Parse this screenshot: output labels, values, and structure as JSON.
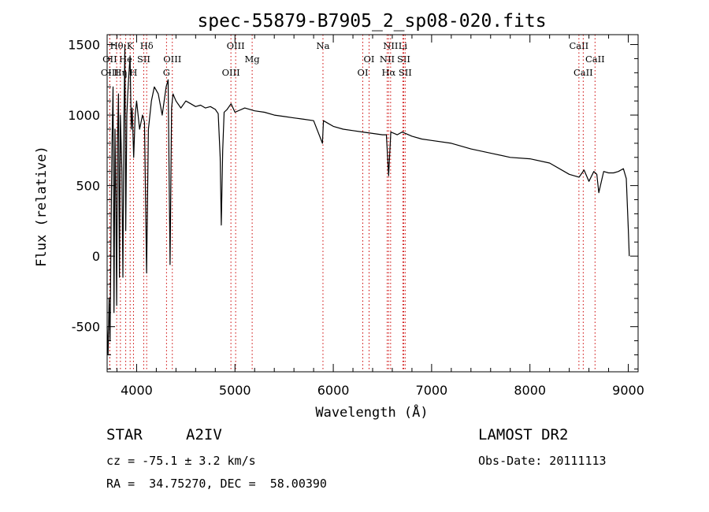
{
  "chart_data": {
    "type": "line",
    "title": "spec-55879-B7905_2_sp08-020.fits",
    "xlabel": "Wavelength (Å)",
    "ylabel": "Flux (relative)",
    "xlim": [
      3700,
      9100
    ],
    "ylim": [
      -820,
      1570
    ],
    "x_ticks": [
      4000,
      5000,
      6000,
      7000,
      8000,
      9000
    ],
    "y_ticks": [
      -500,
      0,
      500,
      1000,
      1500
    ],
    "grid": false,
    "line_color": "#000000",
    "marker_color": "#cc0000",
    "series": [
      {
        "x": [
          3700,
          3710,
          3720,
          3730,
          3740,
          3750,
          3760,
          3770,
          3780,
          3790,
          3797,
          3805,
          3815,
          3825,
          3835,
          3850,
          3860,
          3870,
          3880,
          3889,
          3900,
          3910,
          3920,
          3933,
          3945,
          3955,
          3970,
          3985,
          4000,
          4030,
          4060,
          4080,
          4101,
          4120,
          4150,
          4180,
          4220,
          4260,
          4300,
          4320,
          4340,
          4355,
          4370,
          4400,
          4450,
          4500,
          4550,
          4600,
          4650,
          4700,
          4750,
          4800,
          4830,
          4850,
          4861,
          4875,
          4890,
          4920,
          4960,
          5000,
          5100,
          5200,
          5300,
          5400,
          5500,
          5600,
          5700,
          5800,
          5890,
          5900,
          5950,
          6000,
          6100,
          6200,
          6300,
          6400,
          6500,
          6540,
          6563,
          6585,
          6650,
          6700,
          6800,
          6900,
          7000,
          7200,
          7400,
          7600,
          7800,
          8000,
          8200,
          8400,
          8500,
          8550,
          8600,
          8650,
          8680,
          8700,
          8750,
          8800,
          8850,
          8900,
          8950,
          8980,
          9000,
          9010
        ],
        "y": [
          -500,
          -700,
          -300,
          -600,
          200,
          800,
          1200,
          -400,
          900,
          300,
          -350,
          800,
          1150,
          -150,
          1000,
          600,
          -150,
          900,
          1500,
          180,
          1000,
          1150,
          1280,
          1420,
          900,
          1050,
          700,
          1000,
          1100,
          900,
          1000,
          950,
          -120,
          900,
          1100,
          1200,
          1150,
          1000,
          1200,
          1250,
          -60,
          1050,
          1150,
          1100,
          1050,
          1100,
          1080,
          1060,
          1070,
          1050,
          1060,
          1040,
          1010,
          700,
          220,
          750,
          1020,
          1040,
          1080,
          1020,
          1050,
          1030,
          1020,
          1000,
          990,
          980,
          970,
          960,
          800,
          960,
          940,
          920,
          900,
          890,
          880,
          870,
          860,
          860,
          570,
          880,
          860,
          880,
          850,
          830,
          820,
          800,
          760,
          730,
          700,
          690,
          660,
          580,
          560,
          610,
          530,
          600,
          580,
          450,
          600,
          590,
          590,
          600,
          620,
          550,
          200,
          0
        ]
      }
    ],
    "line_markers": [
      {
        "label": "Hθ",
        "x": 3797,
        "row": 0
      },
      {
        "label": "K",
        "x": 3934,
        "row": 0
      },
      {
        "label": "Hδ",
        "x": 4102,
        "row": 0
      },
      {
        "label": "OIII",
        "x": 5007,
        "row": 0
      },
      {
        "label": "Na",
        "x": 5895,
        "row": 0
      },
      {
        "label": "NII",
        "x": 6583,
        "row": 0
      },
      {
        "label": "Li",
        "x": 6708,
        "row": 0
      },
      {
        "label": "CaII",
        "x": 8498,
        "row": 0
      },
      {
        "label": "OII",
        "x": 3727,
        "row": 1
      },
      {
        "label": "He",
        "x": 3889,
        "row": 1
      },
      {
        "label": "SII",
        "x": 4072,
        "row": 1
      },
      {
        "label": "OIII",
        "x": 4363,
        "row": 1
      },
      {
        "label": "Mg",
        "x": 5175,
        "row": 1
      },
      {
        "label": "OI",
        "x": 6364,
        "row": 1
      },
      {
        "label": "NII",
        "x": 6548,
        "row": 1
      },
      {
        "label": "SII",
        "x": 6716,
        "row": 1
      },
      {
        "label": "CaII",
        "x": 8662,
        "row": 1
      },
      {
        "label": "OIII",
        "x": 3727,
        "row": 2
      },
      {
        "label": "Hη",
        "x": 3835,
        "row": 2
      },
      {
        "label": "H",
        "x": 3968,
        "row": 2
      },
      {
        "label": "G",
        "x": 4304,
        "row": 2
      },
      {
        "label": "OIII",
        "x": 4959,
        "row": 2
      },
      {
        "label": "OI",
        "x": 6300,
        "row": 2
      },
      {
        "label": "Hα",
        "x": 6563,
        "row": 2
      },
      {
        "label": "SII",
        "x": 6731,
        "row": 2
      },
      {
        "label": "CaII",
        "x": 8542,
        "row": 2
      }
    ]
  },
  "info": {
    "star_label": "STAR",
    "spectral_class": "A2IV",
    "cz_line": "cz = -75.1 ± 3.2 km/s",
    "coords_line": "RA =  34.75270, DEC =  58.00390",
    "survey": "LAMOST DR2",
    "obs_date": "Obs-Date: 20111113"
  }
}
